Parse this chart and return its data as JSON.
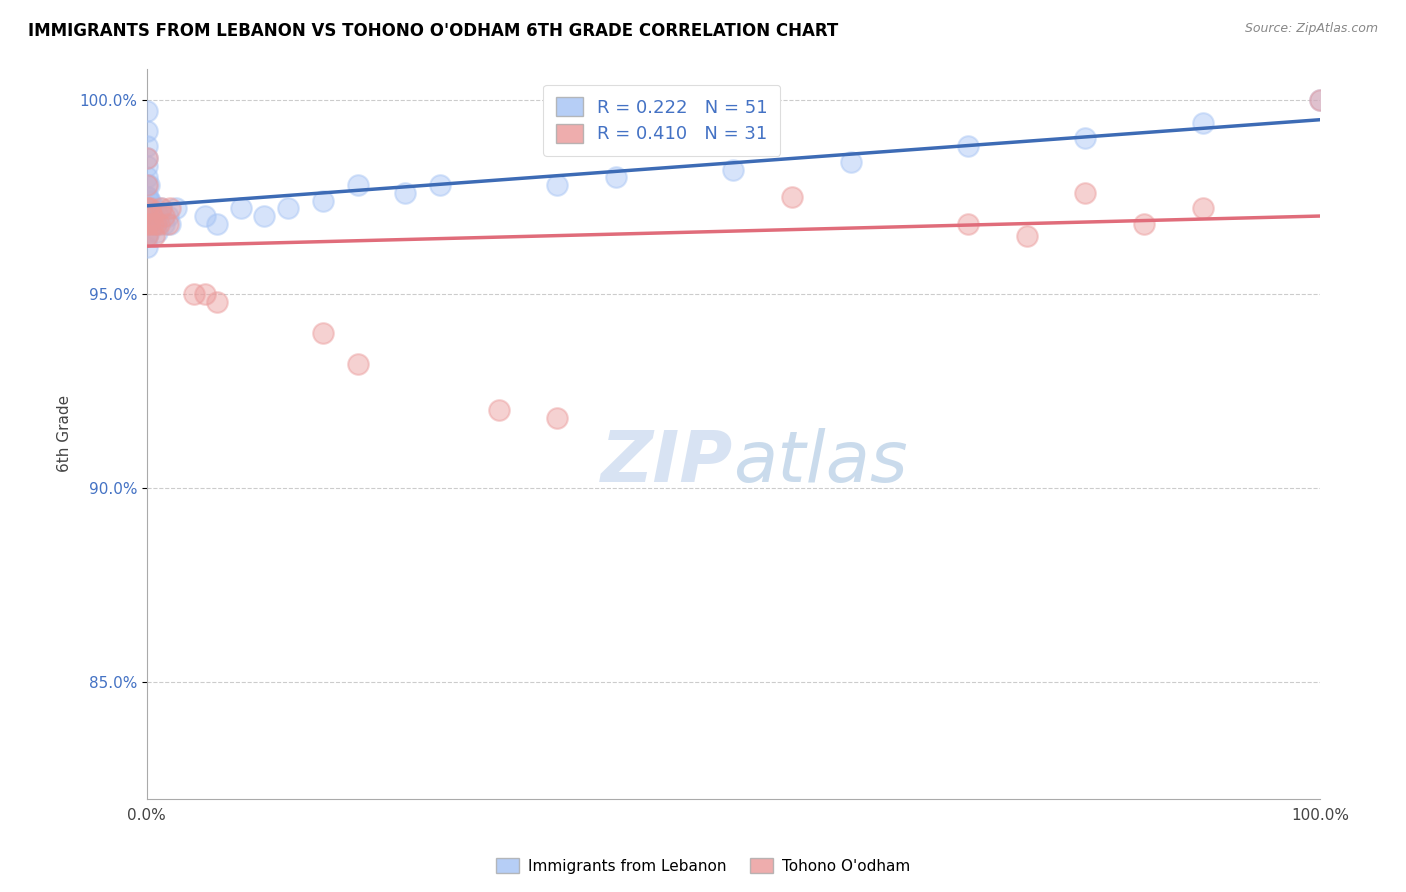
{
  "title": "IMMIGRANTS FROM LEBANON VS TOHONO O'ODHAM 6TH GRADE CORRELATION CHART",
  "source": "Source: ZipAtlas.com",
  "ylabel": "6th Grade",
  "x_min": 0.0,
  "x_max": 1.0,
  "y_min": 0.82,
  "y_max": 1.008,
  "y_tick_labels": [
    "85.0%",
    "90.0%",
    "95.0%",
    "100.0%"
  ],
  "y_tick_values": [
    0.85,
    0.9,
    0.95,
    1.0
  ],
  "r_blue": 0.222,
  "n_blue": 51,
  "r_pink": 0.41,
  "n_pink": 31,
  "blue_color": "#a4c2f4",
  "pink_color": "#ea9999",
  "blue_line_color": "#3d6bb5",
  "pink_line_color": "#e06c7a",
  "legend_label_blue": "Immigrants from Lebanon",
  "legend_label_pink": "Tohono O'odham",
  "blue_points_x": [
    0.0,
    0.0,
    0.0,
    0.0,
    0.0,
    0.0,
    0.0,
    0.0,
    0.0,
    0.0,
    0.0,
    0.0,
    0.0,
    0.001,
    0.001,
    0.001,
    0.002,
    0.002,
    0.002,
    0.002,
    0.003,
    0.003,
    0.004,
    0.005,
    0.006,
    0.007,
    0.008,
    0.009,
    0.01,
    0.012,
    0.015,
    0.018,
    0.02,
    0.025,
    0.05,
    0.06,
    0.08,
    0.1,
    0.12,
    0.15,
    0.18,
    0.22,
    0.25,
    0.35,
    0.4,
    0.5,
    0.6,
    0.7,
    0.8,
    0.9,
    1.0
  ],
  "blue_points_y": [
    0.997,
    0.992,
    0.988,
    0.985,
    0.983,
    0.98,
    0.978,
    0.975,
    0.972,
    0.97,
    0.968,
    0.965,
    0.962,
    0.975,
    0.972,
    0.968,
    0.978,
    0.974,
    0.97,
    0.966,
    0.974,
    0.97,
    0.972,
    0.97,
    0.968,
    0.972,
    0.968,
    0.966,
    0.97,
    0.972,
    0.968,
    0.97,
    0.968,
    0.972,
    0.97,
    0.968,
    0.972,
    0.97,
    0.972,
    0.974,
    0.978,
    0.976,
    0.978,
    0.978,
    0.98,
    0.982,
    0.984,
    0.988,
    0.99,
    0.994,
    1.0
  ],
  "pink_points_x": [
    0.0,
    0.0,
    0.0,
    0.0,
    0.0,
    0.001,
    0.002,
    0.003,
    0.004,
    0.005,
    0.006,
    0.008,
    0.01,
    0.012,
    0.015,
    0.018,
    0.02,
    0.04,
    0.05,
    0.06,
    0.15,
    0.18,
    0.3,
    0.35,
    0.55,
    0.7,
    0.75,
    0.8,
    0.85,
    0.9,
    1.0
  ],
  "pink_points_y": [
    0.985,
    0.978,
    0.972,
    0.968,
    0.965,
    0.972,
    0.968,
    0.972,
    0.97,
    0.968,
    0.965,
    0.968,
    0.968,
    0.972,
    0.97,
    0.968,
    0.972,
    0.95,
    0.95,
    0.948,
    0.94,
    0.932,
    0.92,
    0.918,
    0.975,
    0.968,
    0.965,
    0.976,
    0.968,
    0.972,
    1.0
  ]
}
